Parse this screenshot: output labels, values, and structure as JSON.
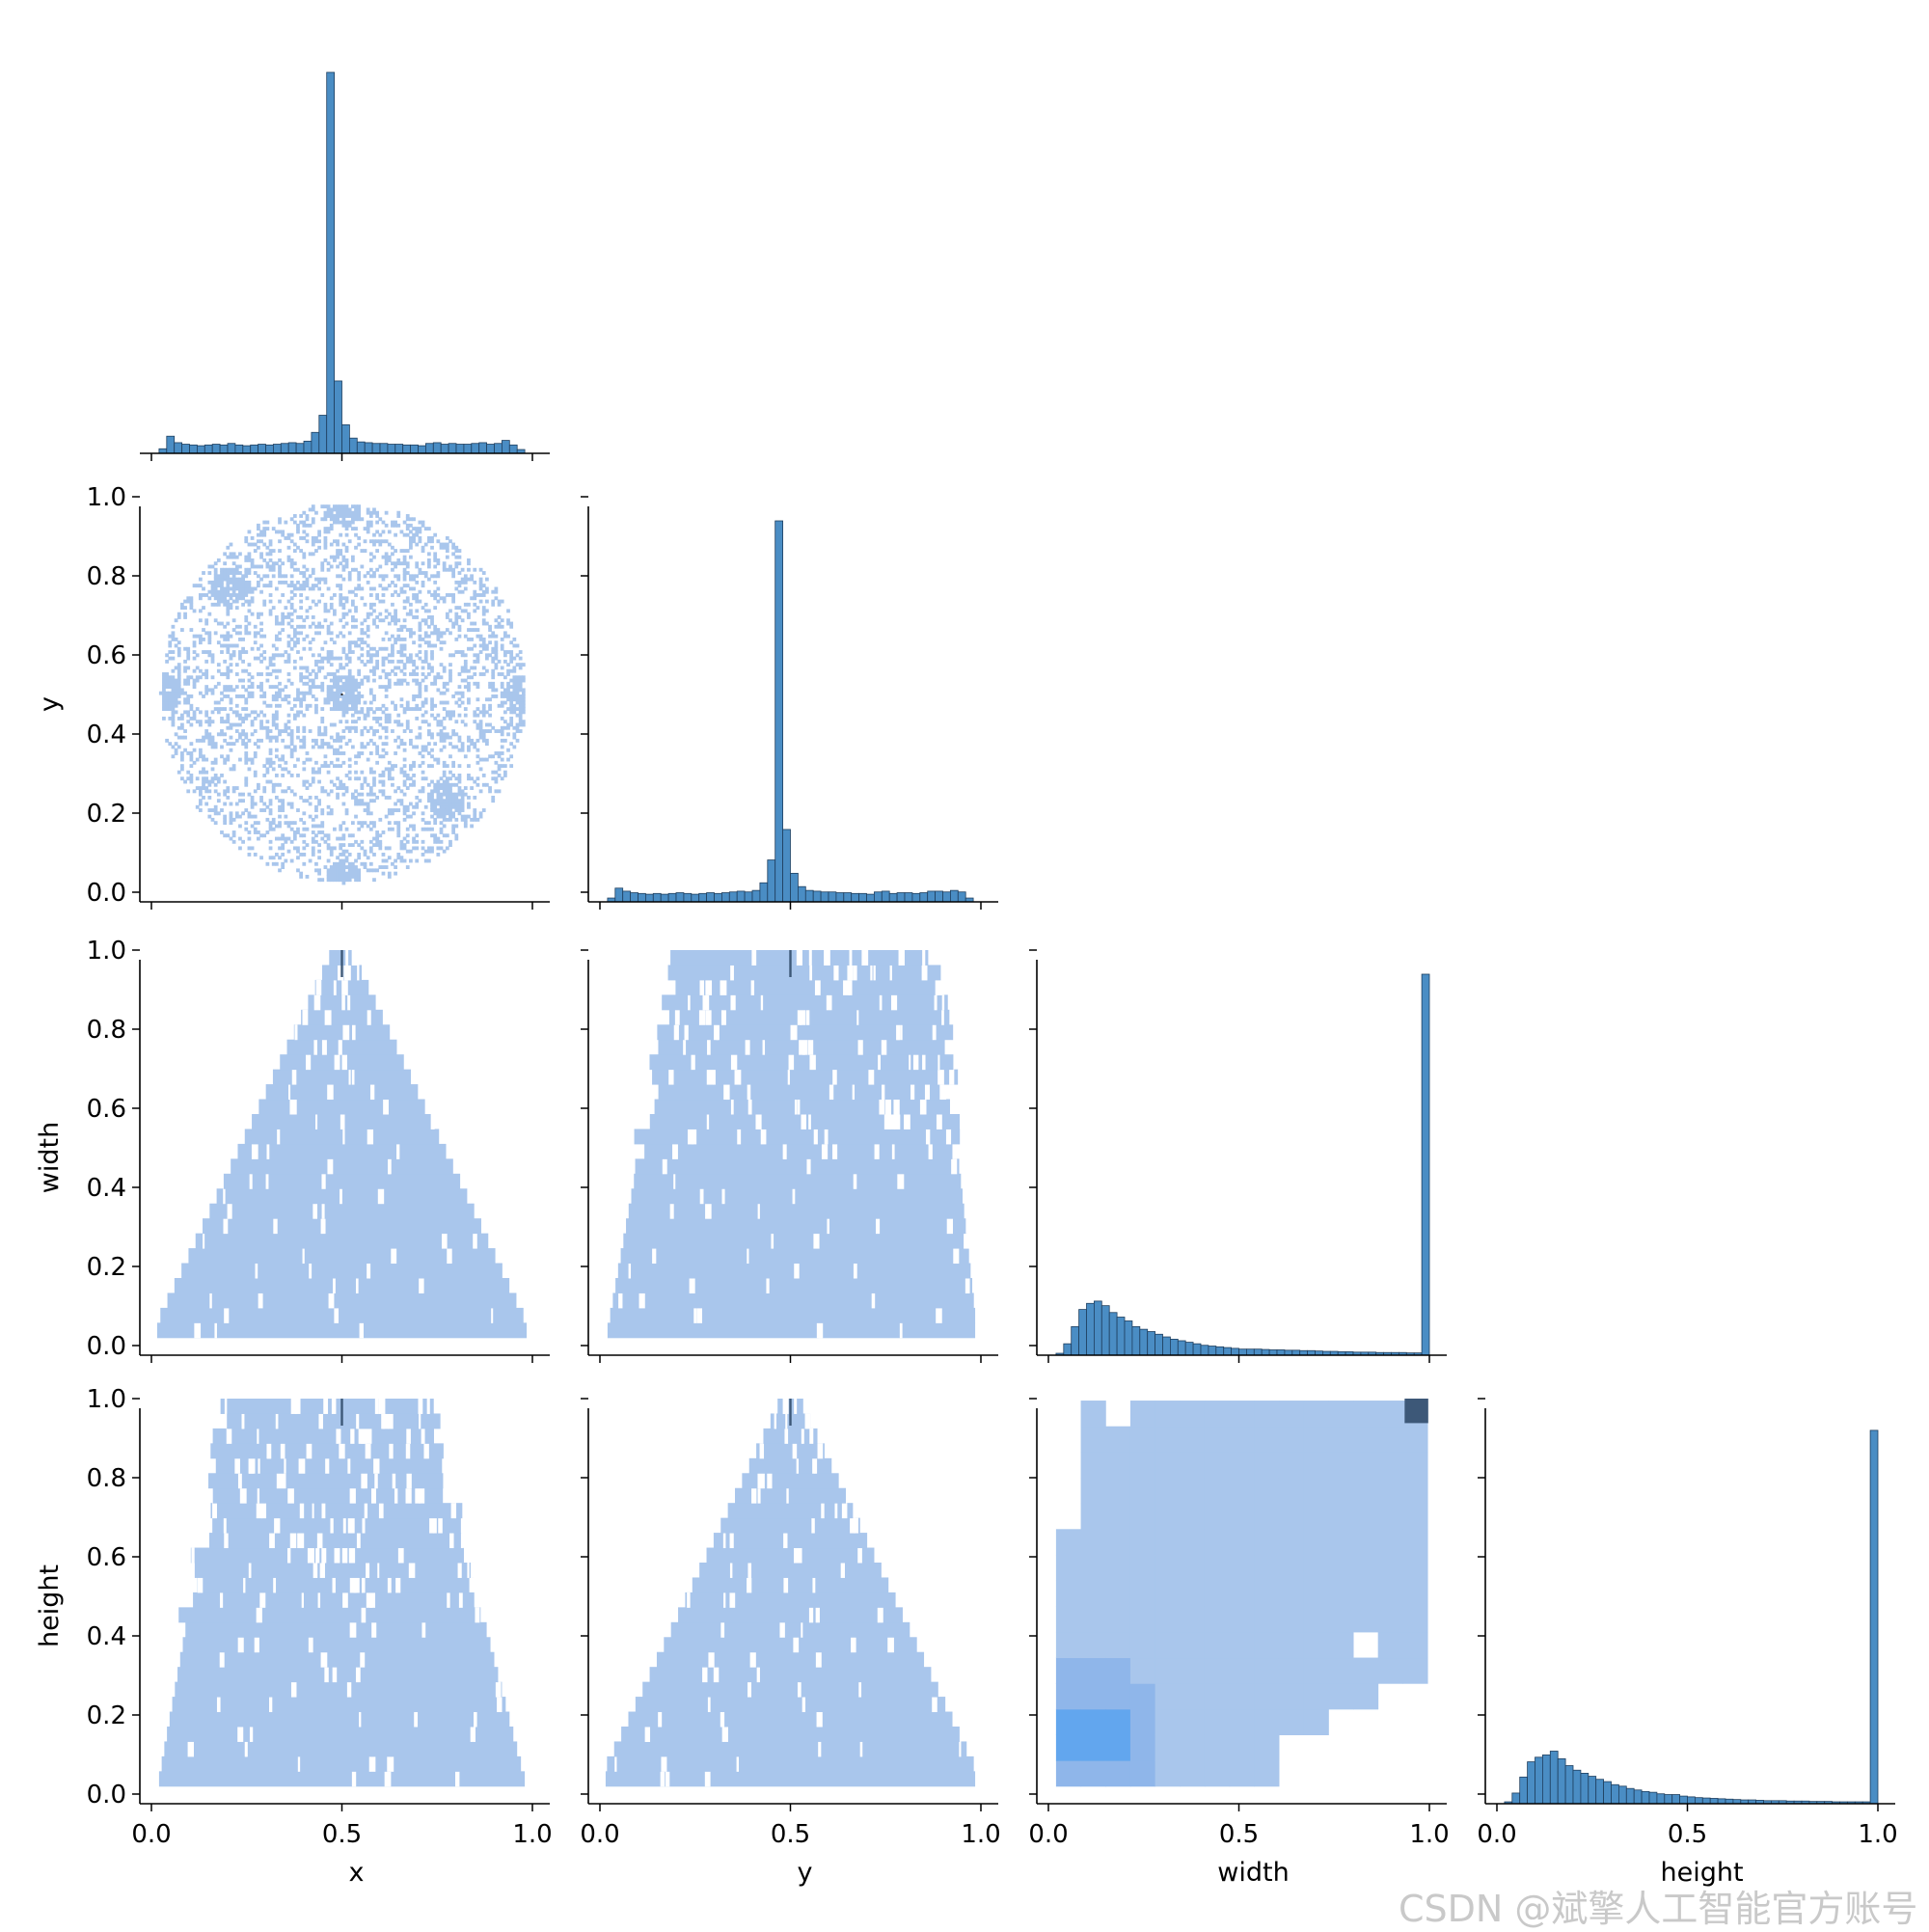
{
  "watermark": "CSDN @斌擎人工智能官方账号",
  "chart_data": {
    "type": "pairplot",
    "variables": [
      "x",
      "y",
      "width",
      "height"
    ],
    "corner": true,
    "grid": false,
    "colors": {
      "bar": "#4a8dc4",
      "bar_edge": "#1f3f5f",
      "hist2d": "#a9c6ec",
      "hist2d_mid": "#8fb6ea",
      "hist2d_high": "#62a6ee",
      "peak": "#3d5878"
    },
    "x_ticks": [
      0.0,
      0.5,
      1.0
    ],
    "x_tick_labels": [
      "0.0",
      "0.5",
      "1.0"
    ],
    "y_ticks": [
      0.0,
      0.2,
      0.4,
      0.6,
      0.8,
      1.0
    ],
    "y_tick_labels": [
      "0.0",
      "0.2",
      "0.4",
      "0.6",
      "0.8",
      "1.0"
    ],
    "diagonal": [
      {
        "variable": "x",
        "type": "histogram",
        "bin_width": 0.02,
        "bin_starts": [
          0.02,
          0.04,
          0.06,
          0.08,
          0.1,
          0.12,
          0.14,
          0.16,
          0.18,
          0.2,
          0.22,
          0.24,
          0.26,
          0.28,
          0.3,
          0.32,
          0.34,
          0.36,
          0.38,
          0.4,
          0.42,
          0.44,
          0.46,
          0.48,
          0.5,
          0.52,
          0.54,
          0.56,
          0.58,
          0.6,
          0.62,
          0.64,
          0.66,
          0.68,
          0.7,
          0.72,
          0.74,
          0.76,
          0.78,
          0.8,
          0.82,
          0.84,
          0.86,
          0.88,
          0.9,
          0.92,
          0.94,
          0.96
        ],
        "relative_heights": [
          0.012,
          0.045,
          0.028,
          0.024,
          0.022,
          0.02,
          0.022,
          0.024,
          0.022,
          0.026,
          0.022,
          0.02,
          0.022,
          0.024,
          0.022,
          0.024,
          0.026,
          0.028,
          0.026,
          0.032,
          0.055,
          0.1,
          1.0,
          0.19,
          0.075,
          0.04,
          0.03,
          0.028,
          0.026,
          0.026,
          0.024,
          0.024,
          0.022,
          0.022,
          0.02,
          0.026,
          0.028,
          0.024,
          0.026,
          0.024,
          0.024,
          0.026,
          0.028,
          0.024,
          0.026,
          0.034,
          0.022,
          0.01
        ]
      },
      {
        "variable": "y",
        "type": "histogram",
        "bin_width": 0.02,
        "bin_starts": [
          0.02,
          0.04,
          0.06,
          0.08,
          0.1,
          0.12,
          0.14,
          0.16,
          0.18,
          0.2,
          0.22,
          0.24,
          0.26,
          0.28,
          0.3,
          0.32,
          0.34,
          0.36,
          0.38,
          0.4,
          0.42,
          0.44,
          0.46,
          0.48,
          0.5,
          0.52,
          0.54,
          0.56,
          0.58,
          0.6,
          0.62,
          0.64,
          0.66,
          0.68,
          0.7,
          0.72,
          0.74,
          0.76,
          0.78,
          0.8,
          0.82,
          0.84,
          0.86,
          0.88,
          0.9,
          0.92,
          0.94,
          0.96
        ],
        "relative_heights": [
          0.01,
          0.036,
          0.028,
          0.024,
          0.022,
          0.02,
          0.022,
          0.02,
          0.022,
          0.024,
          0.022,
          0.02,
          0.022,
          0.024,
          0.022,
          0.024,
          0.026,
          0.028,
          0.026,
          0.03,
          0.05,
          0.11,
          1.0,
          0.19,
          0.075,
          0.04,
          0.03,
          0.028,
          0.026,
          0.026,
          0.024,
          0.024,
          0.022,
          0.022,
          0.02,
          0.026,
          0.028,
          0.022,
          0.024,
          0.024,
          0.022,
          0.024,
          0.028,
          0.028,
          0.026,
          0.03,
          0.026,
          0.01
        ]
      },
      {
        "variable": "width",
        "type": "histogram",
        "bin_width": 0.02,
        "bin_starts": [
          0.02,
          0.04,
          0.06,
          0.08,
          0.1,
          0.12,
          0.14,
          0.16,
          0.18,
          0.2,
          0.22,
          0.24,
          0.26,
          0.28,
          0.3,
          0.32,
          0.34,
          0.36,
          0.38,
          0.4,
          0.42,
          0.44,
          0.46,
          0.48,
          0.5,
          0.52,
          0.54,
          0.56,
          0.58,
          0.6,
          0.62,
          0.64,
          0.66,
          0.68,
          0.7,
          0.72,
          0.74,
          0.76,
          0.78,
          0.8,
          0.82,
          0.84,
          0.86,
          0.88,
          0.9,
          0.92,
          0.94,
          0.96,
          0.98
        ],
        "relative_heights": [
          0.005,
          0.03,
          0.075,
          0.12,
          0.136,
          0.142,
          0.13,
          0.112,
          0.1,
          0.09,
          0.075,
          0.068,
          0.062,
          0.055,
          0.048,
          0.042,
          0.038,
          0.034,
          0.03,
          0.026,
          0.024,
          0.022,
          0.02,
          0.018,
          0.016,
          0.016,
          0.016,
          0.015,
          0.014,
          0.014,
          0.013,
          0.013,
          0.012,
          0.012,
          0.011,
          0.01,
          0.01,
          0.009,
          0.009,
          0.008,
          0.008,
          0.008,
          0.007,
          0.007,
          0.007,
          0.007,
          0.006,
          0.006,
          1.0
        ]
      },
      {
        "variable": "height",
        "type": "histogram",
        "bin_width": 0.02,
        "bin_starts": [
          0.02,
          0.04,
          0.06,
          0.08,
          0.1,
          0.12,
          0.14,
          0.16,
          0.18,
          0.2,
          0.22,
          0.24,
          0.26,
          0.28,
          0.3,
          0.32,
          0.34,
          0.36,
          0.38,
          0.4,
          0.42,
          0.44,
          0.46,
          0.48,
          0.5,
          0.52,
          0.54,
          0.56,
          0.58,
          0.6,
          0.62,
          0.64,
          0.66,
          0.68,
          0.7,
          0.72,
          0.74,
          0.76,
          0.78,
          0.8,
          0.82,
          0.84,
          0.86,
          0.88,
          0.9,
          0.92,
          0.94,
          0.96,
          0.98
        ],
        "relative_heights": [
          0.005,
          0.028,
          0.07,
          0.11,
          0.122,
          0.128,
          0.138,
          0.118,
          0.1,
          0.088,
          0.08,
          0.072,
          0.064,
          0.058,
          0.05,
          0.046,
          0.04,
          0.036,
          0.032,
          0.03,
          0.026,
          0.024,
          0.024,
          0.02,
          0.018,
          0.016,
          0.015,
          0.014,
          0.013,
          0.012,
          0.011,
          0.01,
          0.01,
          0.009,
          0.008,
          0.008,
          0.008,
          0.007,
          0.007,
          0.007,
          0.006,
          0.006,
          0.006,
          0.005,
          0.005,
          0.005,
          0.005,
          0.005,
          0.98
        ]
      }
    ],
    "offdiagonal": [
      {
        "xvar": "x",
        "yvar": "y",
        "type": "hist2d",
        "shape": "disk",
        "center": [
          0.5,
          0.5
        ],
        "radius": 0.48,
        "density": "sparse",
        "clusters": [
          [
            0.5,
            0.5
          ],
          [
            0.5,
            0.03
          ],
          [
            0.5,
            0.97
          ],
          [
            0.03,
            0.5
          ],
          [
            0.97,
            0.5
          ],
          [
            0.2,
            0.77
          ],
          [
            0.77,
            0.23
          ]
        ]
      },
      {
        "xvar": "x",
        "yvar": "width",
        "type": "hist2d",
        "shape": "triangle",
        "apex": [
          0.5,
          1.0
        ],
        "base": [
          0.02,
          0.98
        ]
      },
      {
        "xvar": "y",
        "yvar": "width",
        "type": "hist2d",
        "shape": "trapezoid",
        "top": [
          0.2,
          0.88
        ],
        "base": [
          0.02,
          0.99
        ]
      },
      {
        "xvar": "x",
        "yvar": "height",
        "type": "hist2d",
        "shape": "trapezoid",
        "top": [
          0.2,
          0.72
        ],
        "base": [
          0.02,
          0.98
        ]
      },
      {
        "xvar": "y",
        "yvar": "height",
        "type": "hist2d",
        "shape": "triangle",
        "apex": [
          0.5,
          1.0
        ],
        "base": [
          0.02,
          0.99
        ]
      },
      {
        "xvar": "width",
        "yvar": "height",
        "type": "hist2d",
        "bin_size": 0.065,
        "peak_cell": [
          0.95,
          0.95
        ],
        "dense_cell": [
          0.08,
          0.12
        ]
      }
    ]
  }
}
